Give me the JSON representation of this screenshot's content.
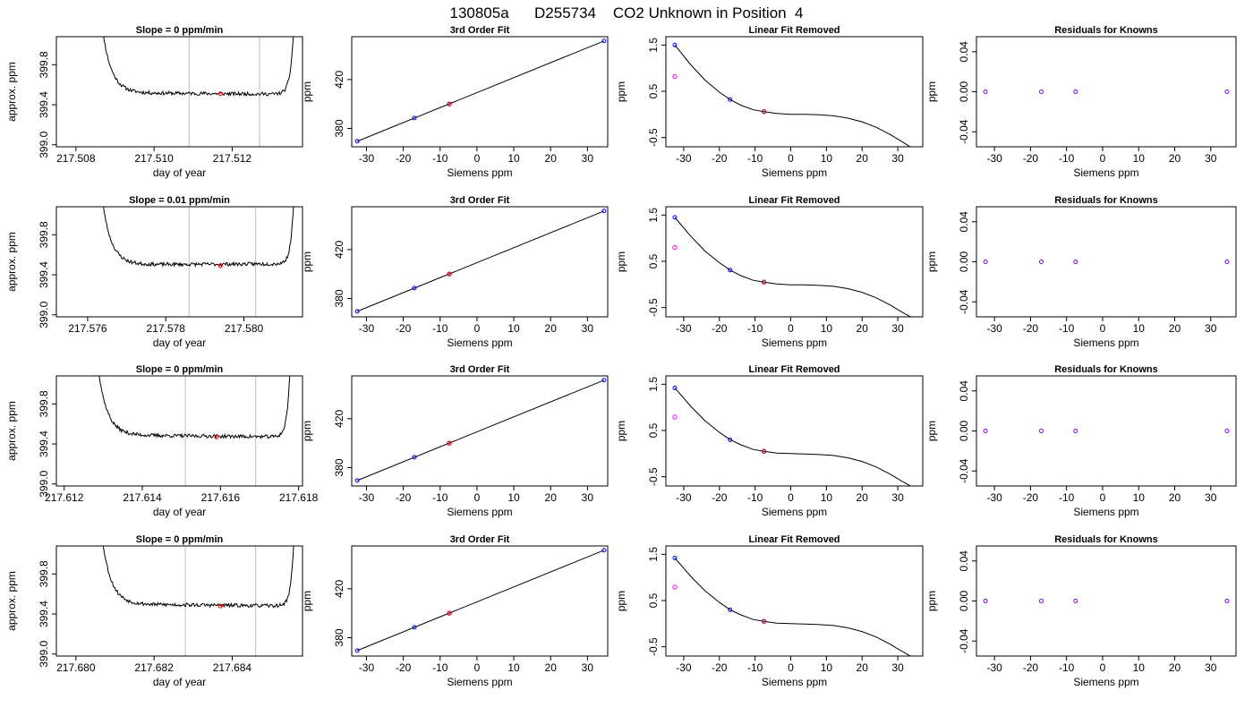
{
  "page_title": "130805a      D255734    CO2 Unknown in Position  4",
  "colors": {
    "trace": "#000000",
    "window_lines": "#c8c8c8",
    "known_points": "#0000ff",
    "unknown_points": "#ff0000",
    "residual_points": "#8000ff",
    "residual_unknown": "#ff00ff"
  },
  "chart_data": [
    {
      "type": "line",
      "row": 0,
      "col": 0,
      "title": "Slope =  0  ppm/min",
      "xlabel": "day of year",
      "ylabel": "approx. ppm",
      "xlim": [
        217.5075,
        217.5138
      ],
      "ylim": [
        398.98,
        400.08
      ],
      "xticks": [
        217.508,
        217.51,
        217.512
      ],
      "xtick_labels": [
        "217.508",
        "217.510",
        "217.512"
      ],
      "yticks": [
        399.0,
        399.4,
        399.8
      ],
      "ytick_labels": [
        "399.0",
        "399.4",
        "399.8"
      ],
      "window_lines": [
        217.5109,
        217.5127
      ],
      "trace": {
        "x_start": 217.5086,
        "x_end": 217.5136,
        "rise_left": 0.0007,
        "rise_right": 0.00028,
        "level": 399.52,
        "level_end": 399.505,
        "seed": 11
      },
      "marker": {
        "x": 217.5117,
        "y": 399.51
      }
    },
    {
      "type": "scatter",
      "row": 0,
      "col": 1,
      "title": "3rd Order Fit",
      "xlabel": "Siemens ppm",
      "ylabel": "ppm",
      "xlim": [
        -34,
        35.5
      ],
      "ylim": [
        365,
        455
      ],
      "xticks": [
        -30,
        -20,
        -10,
        0,
        10,
        20,
        30
      ],
      "xtick_labels": [
        "-30",
        "-20",
        "-10",
        "0",
        "10",
        "20",
        "30"
      ],
      "yticks": [
        380,
        420
      ],
      "ytick_labels": [
        "380",
        "420"
      ],
      "curve": {
        "x": [
          -32.5,
          34.5
        ],
        "y": [
          369.5,
          451.5
        ]
      },
      "known_x": [
        -32.5,
        -17,
        -7.5,
        34.5
      ],
      "known_y": [
        369.5,
        388.5,
        400,
        451.5
      ],
      "unknown_x": [
        -7.5
      ],
      "unknown_y": [
        400
      ]
    },
    {
      "type": "scatter",
      "row": 0,
      "col": 2,
      "title": "Linear Fit Removed",
      "xlabel": "Siemens ppm",
      "ylabel": "ppm",
      "xlim": [
        -35,
        37
      ],
      "ylim": [
        -0.7,
        1.68
      ],
      "xticks": [
        -30,
        -20,
        -10,
        0,
        10,
        20,
        30
      ],
      "xtick_labels": [
        "-30",
        "-20",
        "-10",
        "0",
        "10",
        "20",
        "30"
      ],
      "yticks": [
        -0.5,
        0.5,
        1.5
      ],
      "ytick_labels": [
        "-0.5",
        "0.5",
        "1.5"
      ],
      "curve_x": [
        -32.5,
        -28,
        -24,
        -20,
        -17,
        -14,
        -10.5,
        -7.5,
        -4,
        0,
        4,
        8,
        12,
        16,
        20,
        24,
        28,
        31,
        34.5
      ],
      "curve_y": [
        1.5,
        1.07,
        0.74,
        0.48,
        0.32,
        0.2,
        0.1,
        0.06,
        0.02,
        0.0,
        -0.0,
        -0.01,
        -0.03,
        -0.08,
        -0.16,
        -0.28,
        -0.44,
        -0.58,
        -0.75
      ],
      "known_x": [
        -32.5,
        -17,
        -7.5,
        34.5
      ],
      "known_y": [
        1.5,
        0.32,
        0.06,
        -0.75
      ],
      "unknown_x": [
        -7.5,
        -32.5
      ],
      "unknown_y": [
        0.06,
        0.82
      ]
    },
    {
      "type": "scatter",
      "row": 0,
      "col": 3,
      "title": "Residuals for Knowns",
      "xlabel": "Siemens ppm",
      "ylabel": "ppm",
      "xlim": [
        -35,
        37
      ],
      "ylim": [
        -0.055,
        0.055
      ],
      "xticks": [
        -30,
        -20,
        -10,
        0,
        10,
        20,
        30
      ],
      "xtick_labels": [
        "-30",
        "-20",
        "-10",
        "0",
        "10",
        "20",
        "30"
      ],
      "yticks": [
        -0.04,
        0.0,
        0.04
      ],
      "ytick_labels": [
        "-0.04",
        "0.00",
        "0.04"
      ],
      "known_x": [
        -32.5,
        -17,
        -7.5,
        34.5
      ],
      "known_y": [
        0,
        0,
        0,
        0
      ]
    },
    {
      "type": "line",
      "row": 1,
      "col": 0,
      "title": "Slope =  0.01  ppm/min",
      "xlabel": "day of year",
      "ylabel": "approx. ppm",
      "xlim": [
        217.5752,
        217.5815
      ],
      "ylim": [
        398.98,
        400.08
      ],
      "xticks": [
        217.576,
        217.578,
        217.58
      ],
      "xtick_labels": [
        "217.576",
        "217.578",
        "217.580"
      ],
      "yticks": [
        399.0,
        399.4,
        399.8
      ],
      "ytick_labels": [
        "399.0",
        "399.4",
        "399.8"
      ],
      "window_lines": [
        217.5786,
        217.5803
      ],
      "trace": {
        "x_start": 217.5763,
        "x_end": 217.5813,
        "rise_left": 0.0007,
        "rise_right": 0.00025,
        "level": 399.5,
        "level_end": 399.51,
        "seed": 23
      },
      "marker": {
        "x": 217.5794,
        "y": 399.49
      }
    },
    {
      "type": "scatter",
      "row": 1,
      "col": 1,
      "title": "3rd Order Fit",
      "xlabel": "Siemens ppm",
      "ylabel": "ppm",
      "xlim": [
        -34,
        35.5
      ],
      "ylim": [
        365,
        455
      ],
      "xticks": [
        -30,
        -20,
        -10,
        0,
        10,
        20,
        30
      ],
      "xtick_labels": [
        "-30",
        "-20",
        "-10",
        "0",
        "10",
        "20",
        "30"
      ],
      "yticks": [
        380,
        420
      ],
      "ytick_labels": [
        "380",
        "420"
      ],
      "curve": {
        "x": [
          -32.5,
          34.5
        ],
        "y": [
          369.5,
          451.5
        ]
      },
      "known_x": [
        -32.5,
        -17,
        -7.5,
        34.5
      ],
      "known_y": [
        369.5,
        388.5,
        400,
        451.5
      ],
      "unknown_x": [
        -7.5
      ],
      "unknown_y": [
        400
      ]
    },
    {
      "type": "scatter",
      "row": 1,
      "col": 2,
      "title": "Linear Fit Removed",
      "xlabel": "Siemens ppm",
      "ylabel": "ppm",
      "xlim": [
        -35,
        37
      ],
      "ylim": [
        -0.7,
        1.68
      ],
      "xticks": [
        -30,
        -20,
        -10,
        0,
        10,
        20,
        30
      ],
      "xtick_labels": [
        "-30",
        "-20",
        "-10",
        "0",
        "10",
        "20",
        "30"
      ],
      "yticks": [
        -0.5,
        0.5,
        1.5
      ],
      "ytick_labels": [
        "-0.5",
        "0.5",
        "1.5"
      ],
      "curve_x": [
        -32.5,
        -28,
        -24,
        -20,
        -17,
        -14,
        -10.5,
        -7.5,
        -4,
        0,
        4,
        8,
        12,
        16,
        20,
        24,
        28,
        31,
        34.5
      ],
      "curve_y": [
        1.45,
        1.04,
        0.72,
        0.47,
        0.31,
        0.19,
        0.09,
        0.05,
        0.01,
        -0.01,
        -0.01,
        -0.02,
        -0.04,
        -0.09,
        -0.17,
        -0.29,
        -0.45,
        -0.59,
        -0.74
      ],
      "known_x": [
        -32.5,
        -17,
        -7.5,
        34.5
      ],
      "known_y": [
        1.45,
        0.31,
        0.05,
        -0.74
      ],
      "unknown_x": [
        -7.5,
        -32.5
      ],
      "unknown_y": [
        0.05,
        0.8
      ]
    },
    {
      "type": "scatter",
      "row": 1,
      "col": 3,
      "title": "Residuals for Knowns",
      "xlabel": "Siemens ppm",
      "ylabel": "ppm",
      "xlim": [
        -35,
        37
      ],
      "ylim": [
        -0.055,
        0.055
      ],
      "xticks": [
        -30,
        -20,
        -10,
        0,
        10,
        20,
        30
      ],
      "xtick_labels": [
        "-30",
        "-20",
        "-10",
        "0",
        "10",
        "20",
        "30"
      ],
      "yticks": [
        -0.04,
        0.0,
        0.04
      ],
      "ytick_labels": [
        "-0.04",
        "0.00",
        "0.04"
      ],
      "known_x": [
        -32.5,
        -17,
        -7.5,
        34.5
      ],
      "known_y": [
        0,
        0,
        0,
        0
      ]
    },
    {
      "type": "line",
      "row": 2,
      "col": 0,
      "title": "Slope =  0  ppm/min",
      "xlabel": "day of year",
      "ylabel": "approx. ppm",
      "xlim": [
        217.6118,
        217.6181
      ],
      "ylim": [
        398.98,
        400.08
      ],
      "xticks": [
        217.612,
        217.614,
        217.616,
        217.618
      ],
      "xtick_labels": [
        "217.612",
        "217.614",
        "217.616",
        "217.618"
      ],
      "yticks": [
        399.0,
        399.4,
        399.8
      ],
      "ytick_labels": [
        "399.0",
        "399.4",
        "399.8"
      ],
      "window_lines": [
        217.6151,
        217.6169
      ],
      "trace": {
        "x_start": 217.6128,
        "x_end": 217.6178,
        "rise_left": 0.0007,
        "rise_right": 0.00025,
        "level": 399.49,
        "level_end": 399.47,
        "seed": 37
      },
      "marker": {
        "x": 217.6159,
        "y": 399.47
      }
    },
    {
      "type": "scatter",
      "row": 2,
      "col": 1,
      "title": "3rd Order Fit",
      "xlabel": "Siemens ppm",
      "ylabel": "ppm",
      "xlim": [
        -34,
        35.5
      ],
      "ylim": [
        365,
        455
      ],
      "xticks": [
        -30,
        -20,
        -10,
        0,
        10,
        20,
        30
      ],
      "xtick_labels": [
        "-30",
        "-20",
        "-10",
        "0",
        "10",
        "20",
        "30"
      ],
      "yticks": [
        380,
        420
      ],
      "ytick_labels": [
        "380",
        "420"
      ],
      "curve": {
        "x": [
          -32.5,
          34.5
        ],
        "y": [
          369.5,
          451.5
        ]
      },
      "known_x": [
        -32.5,
        -17,
        -7.5,
        34.5
      ],
      "known_y": [
        369.5,
        388.5,
        400,
        451.5
      ],
      "unknown_x": [
        -7.5
      ],
      "unknown_y": [
        400
      ]
    },
    {
      "type": "scatter",
      "row": 2,
      "col": 2,
      "title": "Linear Fit Removed",
      "xlabel": "Siemens ppm",
      "ylabel": "ppm",
      "xlim": [
        -35,
        37
      ],
      "ylim": [
        -0.7,
        1.68
      ],
      "xticks": [
        -30,
        -20,
        -10,
        0,
        10,
        20,
        30
      ],
      "xtick_labels": [
        "-30",
        "-20",
        "-10",
        "0",
        "10",
        "20",
        "30"
      ],
      "yticks": [
        -0.5,
        0.5,
        1.5
      ],
      "ytick_labels": [
        "-0.5",
        "0.5",
        "1.5"
      ],
      "curve_x": [
        -32.5,
        -28,
        -24,
        -20,
        -17,
        -14,
        -10.5,
        -7.5,
        -4,
        0,
        4,
        8,
        12,
        16,
        20,
        24,
        28,
        31,
        34.5
      ],
      "curve_y": [
        1.42,
        1.02,
        0.71,
        0.46,
        0.3,
        0.19,
        0.09,
        0.05,
        0.01,
        -0.0,
        -0.01,
        -0.02,
        -0.04,
        -0.09,
        -0.17,
        -0.29,
        -0.45,
        -0.59,
        -0.74
      ],
      "known_x": [
        -32.5,
        -17,
        -7.5,
        34.5
      ],
      "known_y": [
        1.42,
        0.3,
        0.05,
        -0.74
      ],
      "unknown_x": [
        -7.5,
        -32.5
      ],
      "unknown_y": [
        0.05,
        0.79
      ]
    },
    {
      "type": "scatter",
      "row": 2,
      "col": 3,
      "title": "Residuals for Knowns",
      "xlabel": "Siemens ppm",
      "ylabel": "ppm",
      "xlim": [
        -35,
        37
      ],
      "ylim": [
        -0.055,
        0.055
      ],
      "xticks": [
        -30,
        -20,
        -10,
        0,
        10,
        20,
        30
      ],
      "xtick_labels": [
        "-30",
        "-20",
        "-10",
        "0",
        "10",
        "20",
        "30"
      ],
      "yticks": [
        -0.04,
        0.0,
        0.04
      ],
      "ytick_labels": [
        "-0.04",
        "0.00",
        "0.04"
      ],
      "known_x": [
        -32.5,
        -17,
        -7.5,
        34.5
      ],
      "known_y": [
        0,
        0,
        0,
        0
      ]
    },
    {
      "type": "line",
      "row": 3,
      "col": 0,
      "title": "Slope =  0  ppm/min",
      "xlabel": "day of year",
      "ylabel": "approx. ppm",
      "xlim": [
        217.6795,
        217.6858
      ],
      "ylim": [
        398.98,
        400.08
      ],
      "xticks": [
        217.68,
        217.682,
        217.684
      ],
      "xtick_labels": [
        "217.680",
        "217.682",
        "217.684"
      ],
      "yticks": [
        399.0,
        399.4,
        399.8
      ],
      "ytick_labels": [
        "399.0",
        "399.4",
        "399.8"
      ],
      "window_lines": [
        217.6828,
        217.6846
      ],
      "trace": {
        "x_start": 217.6806,
        "x_end": 217.6856,
        "rise_left": 0.0007,
        "rise_right": 0.00025,
        "level": 399.5,
        "level_end": 399.48,
        "seed": 53
      },
      "marker": {
        "x": 217.6837,
        "y": 399.48
      }
    },
    {
      "type": "scatter",
      "row": 3,
      "col": 1,
      "title": "3rd Order Fit",
      "xlabel": "Siemens ppm",
      "ylabel": "ppm",
      "xlim": [
        -34,
        35.5
      ],
      "ylim": [
        365,
        455
      ],
      "xticks": [
        -30,
        -20,
        -10,
        0,
        10,
        20,
        30
      ],
      "xtick_labels": [
        "-30",
        "-20",
        "-10",
        "0",
        "10",
        "20",
        "30"
      ],
      "yticks": [
        380,
        420
      ],
      "ytick_labels": [
        "380",
        "420"
      ],
      "curve": {
        "x": [
          -32.5,
          34.5
        ],
        "y": [
          369.5,
          451.5
        ]
      },
      "known_x": [
        -32.5,
        -17,
        -7.5,
        34.5
      ],
      "known_y": [
        369.5,
        388.5,
        400,
        451.5
      ],
      "unknown_x": [
        -7.5
      ],
      "unknown_y": [
        400
      ]
    },
    {
      "type": "scatter",
      "row": 3,
      "col": 2,
      "title": "Linear Fit Removed",
      "xlabel": "Siemens ppm",
      "ylabel": "ppm",
      "xlim": [
        -35,
        37
      ],
      "ylim": [
        -0.7,
        1.68
      ],
      "xticks": [
        -30,
        -20,
        -10,
        0,
        10,
        20,
        30
      ],
      "xtick_labels": [
        "-30",
        "-20",
        "-10",
        "0",
        "10",
        "20",
        "30"
      ],
      "yticks": [
        -0.5,
        0.5,
        1.5
      ],
      "ytick_labels": [
        "-0.5",
        "0.5",
        "1.5"
      ],
      "curve_x": [
        -32.5,
        -28,
        -24,
        -20,
        -17,
        -14,
        -10.5,
        -7.5,
        -4,
        0,
        4,
        8,
        12,
        16,
        20,
        24,
        28,
        31,
        34.5
      ],
      "curve_y": [
        1.42,
        1.02,
        0.71,
        0.46,
        0.3,
        0.19,
        0.09,
        0.05,
        0.01,
        -0.0,
        -0.01,
        -0.02,
        -0.04,
        -0.09,
        -0.17,
        -0.29,
        -0.45,
        -0.59,
        -0.74
      ],
      "known_x": [
        -32.5,
        -17,
        -7.5,
        34.5
      ],
      "known_y": [
        1.42,
        0.3,
        0.05,
        -0.74
      ],
      "unknown_x": [
        -7.5,
        -32.5
      ],
      "unknown_y": [
        0.05,
        0.79
      ]
    },
    {
      "type": "scatter",
      "row": 3,
      "col": 3,
      "title": "Residuals for Knowns",
      "xlabel": "Siemens ppm",
      "ylabel": "ppm",
      "xlim": [
        -35,
        37
      ],
      "ylim": [
        -0.055,
        0.055
      ],
      "xticks": [
        -30,
        -20,
        -10,
        0,
        10,
        20,
        30
      ],
      "xtick_labels": [
        "-30",
        "-20",
        "-10",
        "0",
        "10",
        "20",
        "30"
      ],
      "yticks": [
        -0.04,
        0.0,
        0.04
      ],
      "ytick_labels": [
        "-0.04",
        "0.00",
        "0.04"
      ],
      "known_x": [
        -32.5,
        -17,
        -7.5,
        34.5
      ],
      "known_y": [
        0,
        0,
        0,
        0
      ]
    }
  ]
}
